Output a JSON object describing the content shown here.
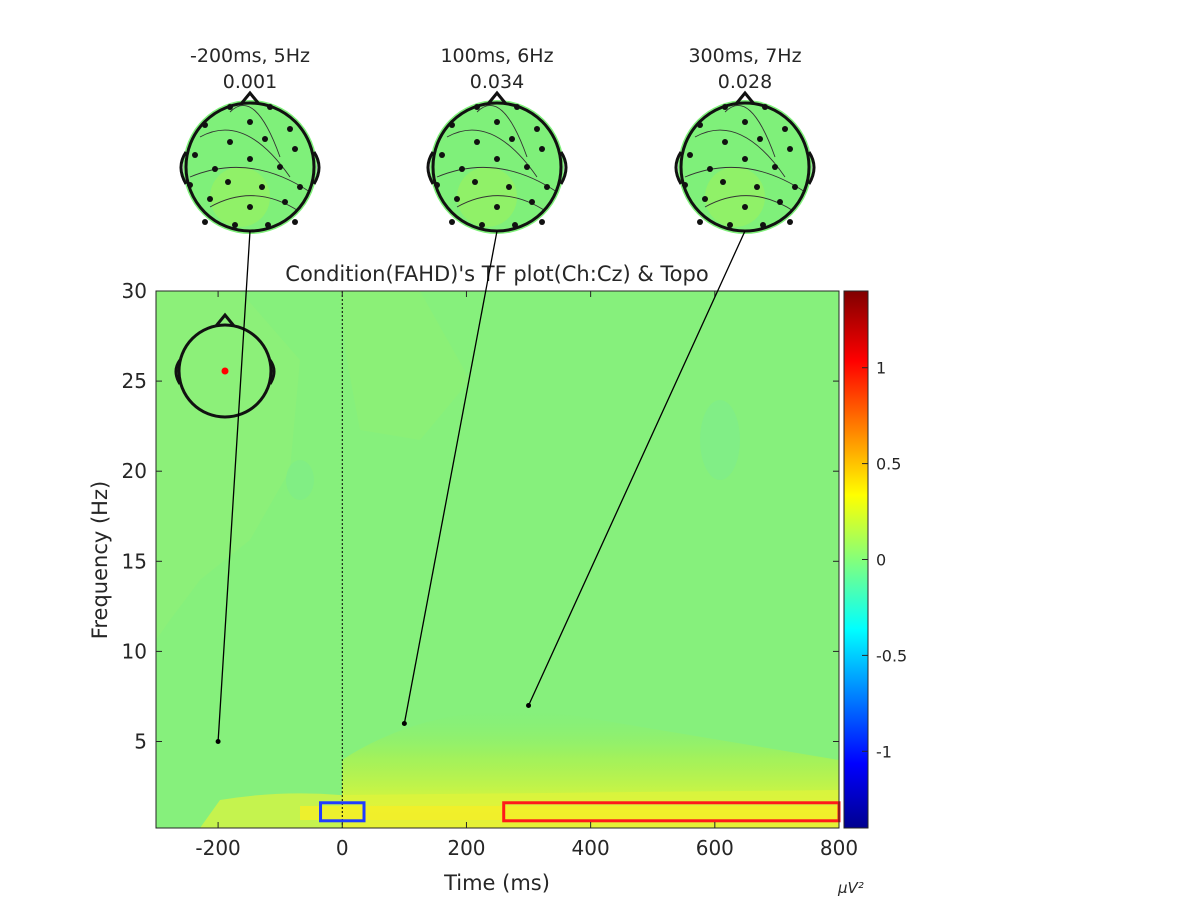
{
  "chart_data": {
    "type": "heatmap",
    "title": "Condition(FAHD)'s TF plot(Ch:Cz) & Topo",
    "xlabel": "Time (ms)",
    "ylabel": "Frequency (Hz)",
    "xlim": [
      -300,
      800
    ],
    "ylim": [
      0.2,
      30
    ],
    "xticks": [
      -200,
      0,
      200,
      400,
      600,
      800
    ],
    "yticks": [
      5,
      10,
      15,
      20,
      25,
      30
    ],
    "event_marker_ms": 0,
    "colorbar": {
      "label": "μV²",
      "clim": [
        -1.4,
        1.4
      ],
      "ticks": [
        -1,
        -0.5,
        0,
        0.5,
        1
      ],
      "colormap": "jet"
    },
    "heatmap_description": "Mostly near-zero power (light green) across the time-frequency plane, with elevated power (yellow-green to yellow, ~0.3-0.5) at low frequencies below ~8 Hz after ~0 ms, strongest below ~2 Hz from 0 to 800 ms.",
    "highlight_boxes": [
      {
        "name": "baseline",
        "color": "#1f3cff",
        "t_range": [
          -35,
          35
        ],
        "f_range": [
          0.6,
          1.6
        ]
      },
      {
        "name": "post",
        "color": "#ff1a1a",
        "t_range": [
          260,
          800
        ],
        "f_range": [
          0.6,
          1.6
        ]
      }
    ],
    "topo_maps": [
      {
        "label": "-200ms, 5Hz",
        "value": "0.001",
        "time_ms": -200,
        "freq_hz": 5
      },
      {
        "label": "100ms, 6Hz",
        "value": "0.034",
        "time_ms": 100,
        "freq_hz": 6
      },
      {
        "label": "300ms, 7Hz",
        "value": "0.028",
        "time_ms": 300,
        "freq_hz": 7
      }
    ],
    "channel_marker": {
      "channel": "Cz",
      "color": "#ff0000"
    }
  }
}
